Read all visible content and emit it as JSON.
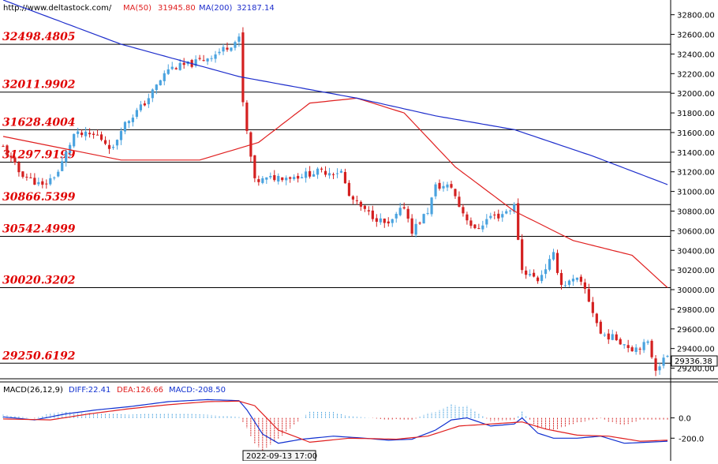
{
  "header": {
    "site": "http://www.deltastock.com/",
    "ma50_label": "MA(50)",
    "ma50_value": "31945.80",
    "ma200_label": "MA(200)",
    "ma200_value": "32187.14"
  },
  "macd_header": {
    "name": "MACD(26,12,9)",
    "diff": "DIFF:22.41",
    "dea": "DEA:126.66",
    "macd": "MACD:-208.50"
  },
  "time_cursor": "2022-09-13 17:00",
  "last_price_label": "29336.38",
  "colors": {
    "up_candle": "#4aa3df",
    "down_candle": "#d42020",
    "ma50": "#e02020",
    "ma200": "#1e2ecc",
    "level_text": "#e00000",
    "level_line": "#000000",
    "macd_diff": "#1030d0",
    "macd_dea": "#e02020"
  },
  "chart_data": [
    {
      "type": "candlestick",
      "ylim": [
        29100,
        32950
      ],
      "y_ticks": [
        "32800.00",
        "32600.00",
        "32400.00",
        "32200.00",
        "32000.00",
        "31800.00",
        "31600.00",
        "31400.00",
        "31200.00",
        "31000.00",
        "30800.00",
        "30600.00",
        "30400.00",
        "30200.00",
        "30000.00",
        "29800.00",
        "29600.00",
        "29400.00",
        "29200.00"
      ],
      "levels": [
        {
          "label": "32498.4805",
          "value": 32498.48
        },
        {
          "label": "32011.9902",
          "value": 32011.99
        },
        {
          "label": "31628.4004",
          "value": 31628.4
        },
        {
          "label": "31297.9199",
          "value": 31297.92
        },
        {
          "label": "30866.5399",
          "value": 30866.54
        },
        {
          "label": "30542.4999",
          "value": 30542.5
        },
        {
          "label": "30020.3202",
          "value": 30020.32
        },
        {
          "label": "29250.6192",
          "value": 29250.62
        }
      ],
      "series": [
        {
          "name": "MA(50)",
          "anchors": [
            [
              0,
              31560
            ],
            [
              30,
              31320
            ],
            [
              50,
              31320
            ],
            [
              65,
              31500
            ],
            [
              78,
              31900
            ],
            [
              90,
              31950
            ],
            [
              102,
              31800
            ],
            [
              115,
              31250
            ],
            [
              130,
              30800
            ],
            [
              145,
              30500
            ],
            [
              160,
              30350
            ],
            [
              169,
              30020
            ]
          ]
        },
        {
          "name": "MA(200)",
          "anchors": [
            [
              0,
              32950
            ],
            [
              30,
              32500
            ],
            [
              60,
              32170
            ],
            [
              90,
              31950
            ],
            [
              110,
              31770
            ],
            [
              130,
              31630
            ],
            [
              150,
              31360
            ],
            [
              169,
              31070
            ]
          ]
        }
      ],
      "price_path": [
        [
          0,
          31450
        ],
        [
          4,
          31200
        ],
        [
          10,
          31050
        ],
        [
          14,
          31200
        ],
        [
          18,
          31580
        ],
        [
          24,
          31570
        ],
        [
          28,
          31430
        ],
        [
          30,
          31650
        ],
        [
          36,
          31900
        ],
        [
          42,
          32250
        ],
        [
          48,
          32300
        ],
        [
          54,
          32400
        ],
        [
          60,
          32550
        ],
        [
          61,
          31900
        ],
        [
          62,
          31600
        ],
        [
          64,
          31100
        ],
        [
          70,
          31150
        ],
        [
          74,
          31150
        ],
        [
          80,
          31200
        ],
        [
          86,
          31200
        ],
        [
          88,
          30950
        ],
        [
          92,
          30800
        ],
        [
          98,
          30650
        ],
        [
          102,
          30850
        ],
        [
          104,
          30600
        ],
        [
          108,
          30800
        ],
        [
          110,
          31050
        ],
        [
          114,
          31050
        ],
        [
          116,
          30850
        ],
        [
          120,
          30600
        ],
        [
          124,
          30750
        ],
        [
          126,
          30750
        ],
        [
          130,
          30850
        ],
        [
          132,
          30200
        ],
        [
          136,
          30100
        ],
        [
          140,
          30350
        ],
        [
          142,
          30050
        ],
        [
          146,
          30100
        ],
        [
          148,
          30000
        ],
        [
          152,
          29550
        ],
        [
          156,
          29500
        ],
        [
          160,
          29400
        ],
        [
          164,
          29450
        ],
        [
          166,
          29200
        ],
        [
          169,
          29330
        ]
      ],
      "last_price": 29336.38
    },
    {
      "type": "macd",
      "ylim": [
        -330,
        230
      ],
      "y_ticks": [
        "0.0",
        "-200.0"
      ],
      "series": [
        {
          "name": "DIFF",
          "anchors": [
            [
              0,
              10
            ],
            [
              8,
              -20
            ],
            [
              16,
              40
            ],
            [
              24,
              80
            ],
            [
              32,
              110
            ],
            [
              42,
              160
            ],
            [
              52,
              180
            ],
            [
              60,
              170
            ],
            [
              62,
              80
            ],
            [
              66,
              -160
            ],
            [
              70,
              -250
            ],
            [
              76,
              -210
            ],
            [
              84,
              -180
            ],
            [
              92,
              -200
            ],
            [
              98,
              -220
            ],
            [
              104,
              -210
            ],
            [
              110,
              -120
            ],
            [
              114,
              -20
            ],
            [
              118,
              0
            ],
            [
              124,
              -80
            ],
            [
              130,
              -60
            ],
            [
              132,
              0
            ],
            [
              136,
              -150
            ],
            [
              140,
              -200
            ],
            [
              146,
              -200
            ],
            [
              152,
              -180
            ],
            [
              158,
              -250
            ],
            [
              164,
              -240
            ],
            [
              169,
              -230
            ]
          ]
        },
        {
          "name": "DEA",
          "anchors": [
            [
              0,
              -10
            ],
            [
              12,
              -20
            ],
            [
              22,
              40
            ],
            [
              32,
              90
            ],
            [
              42,
              130
            ],
            [
              52,
              160
            ],
            [
              60,
              165
            ],
            [
              64,
              120
            ],
            [
              70,
              -120
            ],
            [
              78,
              -240
            ],
            [
              88,
              -200
            ],
            [
              100,
              -210
            ],
            [
              108,
              -180
            ],
            [
              116,
              -80
            ],
            [
              124,
              -60
            ],
            [
              132,
              -40
            ],
            [
              138,
              -110
            ],
            [
              146,
              -170
            ],
            [
              154,
              -180
            ],
            [
              162,
              -230
            ],
            [
              169,
              -220
            ]
          ]
        }
      ]
    }
  ]
}
